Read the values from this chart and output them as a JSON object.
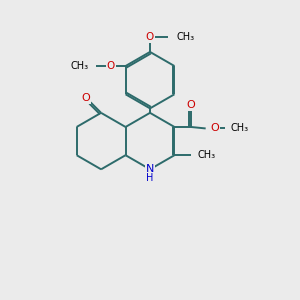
{
  "bg_color": "#ebebeb",
  "bond_color": "#2d6b6b",
  "o_color": "#cc0000",
  "n_color": "#0000cc",
  "text_color": "#000000",
  "bond_width": 1.4,
  "dbo": 0.06,
  "figsize": [
    3.0,
    3.0
  ],
  "dpi": 100,
  "xlim": [
    0,
    10
  ],
  "ylim": [
    0,
    10
  ]
}
